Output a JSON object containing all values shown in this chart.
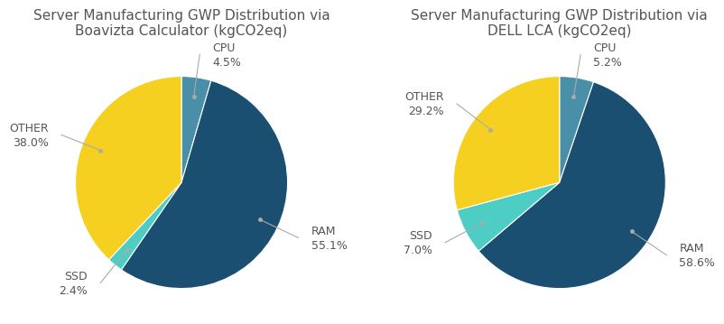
{
  "chart1": {
    "title": "Server Manufacturing GWP Distribution via\nBoavizta Calculator (kgCO2eq)",
    "labels": [
      "CPU",
      "RAM",
      "SSD",
      "OTHER"
    ],
    "values": [
      4.5,
      55.1,
      2.4,
      38.0
    ],
    "colors": {
      "CPU": "#4a8fa8",
      "RAM": "#1b4f72",
      "SSD": "#4ecdc4",
      "OTHER": "#f5d020"
    },
    "label_coords": {
      "CPU": {
        "r_point": 0.98,
        "r_text": 1.55,
        "ha": "left",
        "va": "center"
      },
      "RAM": {
        "r_point": 0.98,
        "r_text": 1.55,
        "ha": "left",
        "va": "center"
      },
      "SSD": {
        "r_point": 0.98,
        "r_text": 1.55,
        "ha": "right",
        "va": "center"
      },
      "OTHER": {
        "r_point": 0.98,
        "r_text": 1.55,
        "ha": "right",
        "va": "center"
      }
    }
  },
  "chart2": {
    "title": "Server Manufacturing GWP Distribution via\nDELL LCA (kgCO2eq)",
    "labels": [
      "CPU",
      "RAM",
      "SSD",
      "OTHER"
    ],
    "values": [
      5.2,
      58.6,
      7.0,
      29.2
    ],
    "colors": {
      "CPU": "#4a8fa8",
      "RAM": "#1b4f72",
      "SSD": "#4ecdc4",
      "OTHER": "#f5d020"
    },
    "label_coords": {
      "CPU": {
        "r_point": 0.98,
        "r_text": 1.55,
        "ha": "left",
        "va": "center"
      },
      "RAM": {
        "r_point": 0.98,
        "r_text": 1.55,
        "ha": "left",
        "va": "center"
      },
      "SSD": {
        "r_point": 0.98,
        "r_text": 1.55,
        "ha": "right",
        "va": "center"
      },
      "OTHER": {
        "r_point": 0.98,
        "r_text": 1.55,
        "ha": "right",
        "va": "center"
      }
    }
  },
  "bg_color": "#ffffff",
  "title_fontsize": 11,
  "label_fontsize": 9
}
